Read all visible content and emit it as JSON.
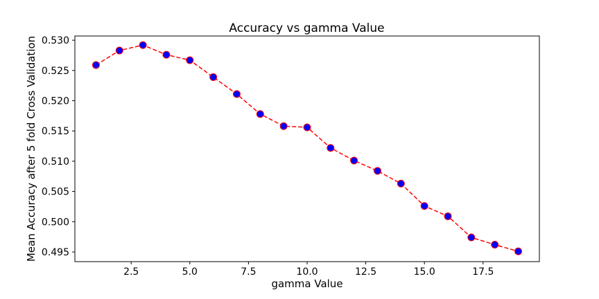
{
  "chart_data": {
    "type": "line",
    "title": "Accuracy vs gamma Value",
    "xlabel": "gamma Value",
    "ylabel": "Mean Accuracy after 5 fold Cross Validation",
    "xlim": [
      0.1,
      19.9
    ],
    "ylim": [
      0.4934,
      0.5307
    ],
    "x_ticks": [
      2.5,
      5.0,
      7.5,
      10.0,
      12.5,
      15.0,
      17.5
    ],
    "x_tick_labels": [
      "2.5",
      "5.0",
      "7.5",
      "10.0",
      "12.5",
      "15.0",
      "17.5"
    ],
    "y_ticks": [
      0.495,
      0.5,
      0.505,
      0.51,
      0.515,
      0.52,
      0.525,
      0.53
    ],
    "y_tick_labels": [
      "0.495",
      "0.500",
      "0.505",
      "0.510",
      "0.515",
      "0.520",
      "0.525",
      "0.530"
    ],
    "grid": false,
    "legend": "none",
    "series": [
      {
        "x": [
          1,
          2,
          3,
          4,
          5,
          6,
          7,
          8,
          9,
          10,
          11,
          12,
          13,
          14,
          15,
          16,
          17,
          18,
          19
        ],
        "values": [
          0.5259,
          0.5283,
          0.5292,
          0.5276,
          0.5267,
          0.5239,
          0.5211,
          0.5178,
          0.5158,
          0.5156,
          0.5122,
          0.5101,
          0.5084,
          0.5063,
          0.5026,
          0.5009,
          0.4974,
          0.4962,
          0.4951
        ],
        "line_color": "#ff0000",
        "line_style": "dashed",
        "marker": "circle",
        "marker_face_color": "#0000ff",
        "marker_edge_color": "#ff0000"
      }
    ]
  }
}
